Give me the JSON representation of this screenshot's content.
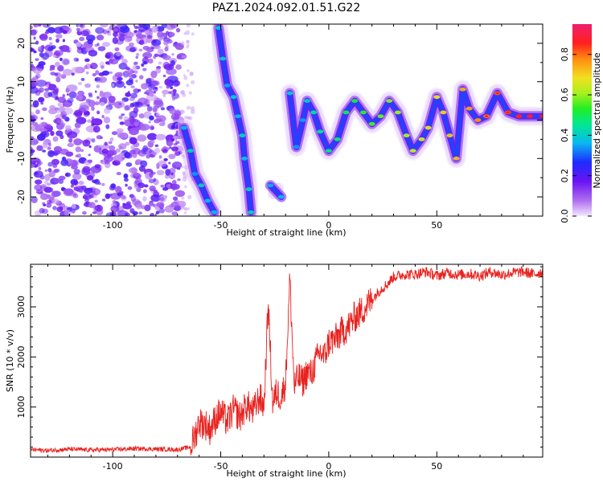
{
  "title": "PAZ1.2024.092.01.51.G22",
  "chart_data": [
    {
      "type": "heatmap",
      "xlabel": "Height of straight line (km)",
      "ylabel": "Frequency (Hz)",
      "xlim": [
        -138,
        99
      ],
      "ylim": [
        -25,
        25
      ],
      "xticks": [
        -100,
        -50,
        0,
        50
      ],
      "yticks": [
        -20,
        -10,
        0,
        10,
        20
      ],
      "colorbar": {
        "label": "Normalized spectral amplitude",
        "range": [
          0,
          0.95
        ],
        "ticks": [
          0.0,
          0.2,
          0.4,
          0.6,
          0.8
        ],
        "colormap": "rainbow (violet to magenta)"
      },
      "noise_region_x": [
        -138,
        -68
      ],
      "signal_track": [
        {
          "x": -67,
          "y": -2
        },
        {
          "x": -64,
          "y": -8
        },
        {
          "x": -62,
          "y": -14
        },
        {
          "x": -59,
          "y": -17
        },
        {
          "x": -56,
          "y": -21
        },
        {
          "x": -53,
          "y": -24
        },
        {
          "x": -51,
          "y": 24
        },
        {
          "x": -49,
          "y": 16
        },
        {
          "x": -47,
          "y": 9
        },
        {
          "x": -44,
          "y": 6
        },
        {
          "x": -42,
          "y": 1
        },
        {
          "x": -40,
          "y": -4
        },
        {
          "x": -39,
          "y": -10
        },
        {
          "x": -37,
          "y": -18
        },
        {
          "x": -36,
          "y": -24
        },
        {
          "x": -27,
          "y": -17
        },
        {
          "x": -22,
          "y": -20
        },
        {
          "x": -18,
          "y": 7
        },
        {
          "x": -15,
          "y": -7
        },
        {
          "x": -12,
          "y": 0
        },
        {
          "x": -10,
          "y": 5
        },
        {
          "x": -7,
          "y": 2
        },
        {
          "x": -4,
          "y": -3
        },
        {
          "x": 0,
          "y": -8
        },
        {
          "x": 4,
          "y": -5
        },
        {
          "x": 8,
          "y": 2
        },
        {
          "x": 12,
          "y": 5
        },
        {
          "x": 16,
          "y": 2
        },
        {
          "x": 20,
          "y": -1
        },
        {
          "x": 24,
          "y": 1
        },
        {
          "x": 28,
          "y": 5
        },
        {
          "x": 32,
          "y": 2
        },
        {
          "x": 36,
          "y": -4
        },
        {
          "x": 39,
          "y": -8
        },
        {
          "x": 43,
          "y": -5
        },
        {
          "x": 46,
          "y": -2
        },
        {
          "x": 50,
          "y": 6
        },
        {
          "x": 53,
          "y": 2
        },
        {
          "x": 56,
          "y": -4
        },
        {
          "x": 59,
          "y": -10
        },
        {
          "x": 62,
          "y": 8
        },
        {
          "x": 65,
          "y": 3
        },
        {
          "x": 69,
          "y": 0
        },
        {
          "x": 73,
          "y": 1
        },
        {
          "x": 78,
          "y": 7
        },
        {
          "x": 83,
          "y": 2
        },
        {
          "x": 88,
          "y": 1
        },
        {
          "x": 93,
          "y": 1
        },
        {
          "x": 99,
          "y": 1
        }
      ]
    },
    {
      "type": "line",
      "xlabel": "Height of straight line (km)",
      "ylabel": "SNR (10 * v/v)",
      "xlim": [
        -138,
        99
      ],
      "ylim": [
        0,
        3850
      ],
      "xticks": [
        -100,
        -50,
        0,
        50
      ],
      "yticks": [
        1000,
        2000,
        3000
      ],
      "series": [
        {
          "color": "#e8221f",
          "x": [
            -138,
            -130,
            -120,
            -110,
            -100,
            -90,
            -80,
            -70,
            -64,
            -62,
            -60,
            -57,
            -55,
            -52,
            -50,
            -47,
            -44,
            -41,
            -38,
            -35,
            -32,
            -30,
            -28,
            -26,
            -24,
            -22,
            -20,
            -18,
            -16,
            -14,
            -12,
            -10,
            -8,
            -6,
            -4,
            -2,
            0,
            3,
            6,
            9,
            12,
            15,
            18,
            21,
            24,
            27,
            30,
            35,
            40,
            45,
            50,
            55,
            60,
            65,
            70,
            75,
            80,
            85,
            90,
            95,
            99
          ],
          "y": [
            150,
            130,
            160,
            140,
            150,
            170,
            160,
            150,
            200,
            420,
            700,
            650,
            550,
            800,
            900,
            700,
            950,
            800,
            1050,
            900,
            1200,
            1000,
            3050,
            1100,
            1300,
            1200,
            1500,
            3550,
            1400,
            1600,
            1500,
            1700,
            1650,
            1900,
            2100,
            2000,
            2300,
            2350,
            2500,
            2600,
            2800,
            2900,
            3050,
            3200,
            3350,
            3450,
            3600,
            3650,
            3650,
            3700,
            3620,
            3680,
            3640,
            3660,
            3620,
            3700,
            3640,
            3680,
            3700,
            3650,
            3700
          ]
        }
      ]
    }
  ]
}
